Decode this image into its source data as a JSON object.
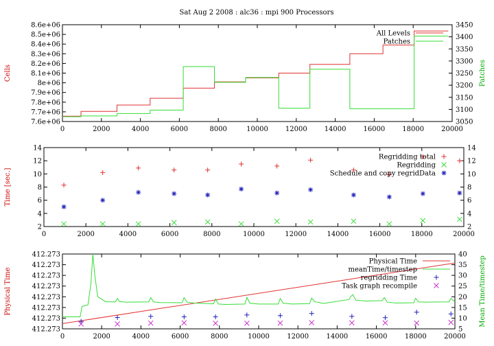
{
  "title": "Sat Aug 2 2008 : alc36 : mpi 900 Processors",
  "colors": {
    "red": "#e03030",
    "green": "#33dd33",
    "blue": "#2020bb",
    "magenta": "#cc33cc",
    "darkred": "#cc0000",
    "darkgreen": "#00aa00"
  },
  "chart_data": [
    {
      "type": "line",
      "xlim": [
        0,
        20000
      ],
      "xticks": [
        0,
        2000,
        4000,
        6000,
        8000,
        10000,
        12000,
        14000,
        16000,
        18000,
        20000
      ],
      "ylabel": "Cells",
      "ylim": [
        7600000,
        8600000
      ],
      "yticks": [
        "7.6e+06",
        "7.7e+06",
        "7.8e+06",
        "7.9e+06",
        "8e+06",
        "8.1e+06",
        "8.2e+06",
        "8.3e+06",
        "8.4e+06",
        "8.5e+06",
        "8.6e+06"
      ],
      "y2label": "Patches",
      "y2lim": [
        3050,
        3450
      ],
      "y2ticks": [
        3050,
        3100,
        3150,
        3200,
        3250,
        3300,
        3350,
        3400,
        3450
      ],
      "legend_position": "top-right",
      "series": [
        {
          "name": "All Levels",
          "color": "red",
          "axis": "y",
          "step": true,
          "x": [
            0,
            950,
            2800,
            4500,
            6200,
            7800,
            9400,
            11100,
            12700,
            14750,
            16450,
            18050,
            19800
          ],
          "y": [
            7655000,
            7705000,
            7770000,
            7840000,
            7945000,
            8010000,
            8050000,
            8100000,
            8190000,
            8300000,
            8390000,
            8535000,
            8535000
          ]
        },
        {
          "name": "Patches",
          "color": "green",
          "axis": "y2",
          "step": true,
          "x": [
            0,
            950,
            2800,
            4500,
            6200,
            7800,
            9400,
            11100,
            12700,
            14750,
            16450,
            18050,
            19800
          ],
          "y": [
            3070,
            3073,
            3083,
            3097,
            3277,
            3212,
            3232,
            3105,
            3266,
            3103,
            3103,
            3403,
            3403
          ]
        }
      ]
    },
    {
      "type": "scatter",
      "xlim": [
        0,
        20000
      ],
      "xticks": [
        0,
        2000,
        4000,
        6000,
        8000,
        10000,
        12000,
        14000,
        16000,
        18000,
        20000
      ],
      "ylabel": "Time [sec.]",
      "ylim": [
        2,
        14
      ],
      "yticks": [
        2,
        4,
        6,
        8,
        10,
        12,
        14
      ],
      "y2ticks": [
        2,
        4,
        6,
        8,
        10,
        12,
        14
      ],
      "legend_position": "top-right",
      "x": [
        950,
        2800,
        4500,
        6200,
        7800,
        9400,
        11100,
        12700,
        14750,
        16450,
        18050,
        19800
      ],
      "series": [
        {
          "name": "Regridding total",
          "color": "red",
          "marker": "+",
          "y": [
            8.3,
            10.2,
            10.9,
            10.6,
            10.6,
            11.5,
            11.2,
            12.1,
            10.6,
            9.9,
            12.6,
            12.0
          ]
        },
        {
          "name": "Regridding",
          "color": "green",
          "marker": "x",
          "y": [
            2.4,
            2.4,
            2.4,
            2.6,
            2.7,
            2.4,
            2.8,
            2.7,
            2.8,
            2.4,
            2.9,
            3.1
          ]
        },
        {
          "name": "Schedule and copy regridData",
          "color": "blue",
          "marker": "*",
          "y": [
            5.0,
            6.0,
            7.2,
            7.0,
            6.8,
            7.7,
            7.1,
            7.6,
            6.8,
            6.5,
            7.0,
            7.1
          ]
        }
      ]
    },
    {
      "type": "line",
      "xlim": [
        0,
        20000
      ],
      "xticks": [
        0,
        2000,
        4000,
        6000,
        8000,
        10000,
        12000,
        14000,
        16000,
        18000,
        20000
      ],
      "ylabel": "Physical Time",
      "yticks": [
        "412.273",
        "412.273",
        "412.273",
        "412.273",
        "412.273",
        "412.273",
        "412.273",
        "412.273"
      ],
      "y2label": "Mean Time/timestep",
      "y2lim": [
        5,
        40
      ],
      "y2ticks": [
        5,
        10,
        15,
        20,
        25,
        30,
        35,
        40
      ],
      "legend_position": "top-right",
      "series": [
        {
          "name": "Physical Time",
          "color": "red",
          "axis": "y",
          "fraction": [
            0.07,
            0.88
          ]
        },
        {
          "name": "meanTime/timestep",
          "color": "green",
          "axis": "y2",
          "x": [
            0,
            900,
            1000,
            1300,
            1450,
            1550,
            1650,
            1800,
            2200,
            2700,
            2800,
            2900,
            3200,
            4400,
            4500,
            4650,
            5000,
            6100,
            6200,
            6350,
            6700,
            7700,
            7800,
            7950,
            8300,
            9300,
            9400,
            9550,
            10000,
            11000,
            11100,
            11250,
            11700,
            12600,
            12700,
            12850,
            13300,
            14600,
            14700,
            14800,
            14950,
            15500,
            16300,
            16400,
            16550,
            17000,
            17900,
            18000,
            18150,
            18500,
            19700,
            19800,
            20000
          ],
          "y": [
            10.6,
            10.6,
            15.5,
            16.2,
            26,
            40,
            30,
            20,
            17.7,
            17.6,
            19.2,
            17.8,
            17.5,
            17.6,
            19.6,
            17.6,
            17.3,
            17.2,
            19.6,
            17.5,
            17.1,
            16.7,
            19.0,
            16.6,
            16.4,
            16.6,
            19.7,
            17.0,
            16.6,
            16.6,
            19.2,
            17.0,
            16.6,
            16.8,
            19.4,
            17.7,
            16.9,
            18.7,
            20.2,
            21.0,
            18.4,
            18.0,
            18.2,
            19.6,
            17.5,
            17.1,
            17.2,
            19.3,
            17.6,
            17.5,
            17.6,
            19.2,
            17.6
          ]
        },
        {
          "name": "regridding Time",
          "color": "blue",
          "axis": "y2",
          "marker": "+",
          "x": [
            950,
            2800,
            4500,
            6200,
            7800,
            9400,
            11100,
            12700,
            14750,
            16450,
            18050,
            19800
          ],
          "y": [
            8.5,
            10.3,
            10.8,
            10.6,
            10.6,
            11.5,
            11.2,
            12.2,
            10.8,
            10.2,
            12.8,
            12.0
          ]
        },
        {
          "name": "Task graph recompile",
          "color": "magenta",
          "axis": "y2",
          "marker": "x",
          "x": [
            950,
            2800,
            4500,
            6200,
            7800,
            9400,
            11100,
            12700,
            14750,
            16450,
            18050,
            19800
          ],
          "y": [
            7.3,
            7.3,
            7.7,
            7.8,
            7.6,
            7.6,
            7.7,
            7.9,
            7.8,
            7.8,
            7.7,
            8.0
          ]
        }
      ]
    }
  ]
}
